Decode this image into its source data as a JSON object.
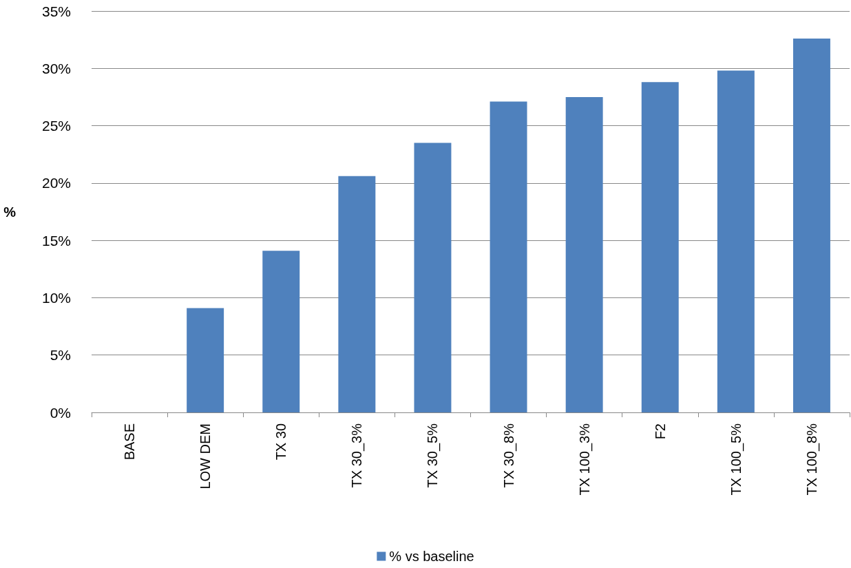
{
  "chart_data": {
    "type": "bar",
    "ylabel": "%",
    "categories": [
      "BASE",
      "LOW DEM",
      "TX 30",
      "TX 30_3%",
      "TX 30_5%",
      "TX 30_8%",
      "TX 100_3%",
      "F2",
      "TX 100_5%",
      "TX 100_8%"
    ],
    "series": [
      {
        "name": "% vs baseline",
        "color": "#4f81bd",
        "values": [
          0,
          9.1,
          14.1,
          20.6,
          23.5,
          27.1,
          27.5,
          28.8,
          29.8,
          32.6
        ]
      }
    ],
    "ylim": [
      0,
      35
    ],
    "yticks": [
      {
        "value": 0,
        "label": "0%"
      },
      {
        "value": 5,
        "label": "5%"
      },
      {
        "value": 10,
        "label": "10%"
      },
      {
        "value": 15,
        "label": "15%"
      },
      {
        "value": 20,
        "label": "20%"
      },
      {
        "value": 25,
        "label": "25%"
      },
      {
        "value": 30,
        "label": "30%"
      },
      {
        "value": 35,
        "label": "35%"
      }
    ],
    "grid": "y",
    "legend": "bottom"
  }
}
